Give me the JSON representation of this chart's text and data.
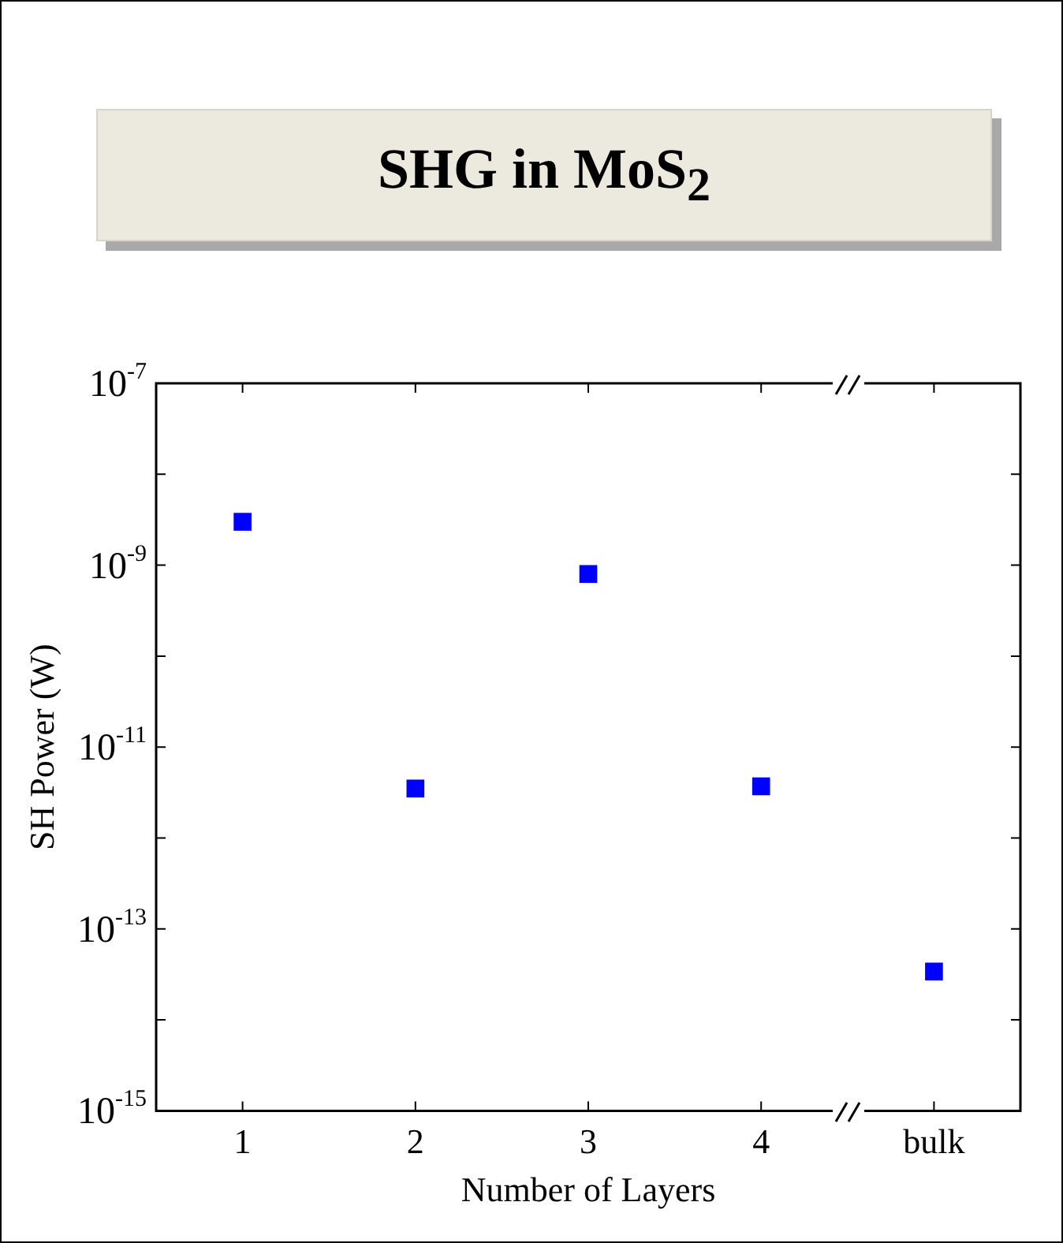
{
  "chart_data": {
    "type": "scatter",
    "title": "SHG in MoS$_{2}$",
    "xlabel": "Number of Layers",
    "ylabel": "SH Power (W)",
    "categories": [
      "1",
      "2",
      "3",
      "4",
      "bulk"
    ],
    "series": [
      {
        "color": "#0000ff",
        "values": [
          3e-09,
          3.5e-12,
          8e-10,
          3.7e-12,
          3.4e-14
        ]
      }
    ],
    "log": "y",
    "ylim": [
      1e-15,
      1e-07
    ],
    "yticks": [
      {
        "value": 1e-15,
        "label": "10$^{-15}$"
      },
      {
        "value": 1e-14,
        "label": null
      },
      {
        "value": 1e-13,
        "label": "10$^{-13}$"
      },
      {
        "value": 1e-12,
        "label": null
      },
      {
        "value": 1e-11,
        "label": "10$^{-11}$"
      },
      {
        "value": 1e-10,
        "label": null
      },
      {
        "value": 1e-09,
        "label": "10$^{-9}$"
      },
      {
        "value": 1e-08,
        "label": null
      },
      {
        "value": 1e-07,
        "label": "10$^{-7}$"
      }
    ],
    "grid": false,
    "legend": false,
    "marker": "square"
  }
}
